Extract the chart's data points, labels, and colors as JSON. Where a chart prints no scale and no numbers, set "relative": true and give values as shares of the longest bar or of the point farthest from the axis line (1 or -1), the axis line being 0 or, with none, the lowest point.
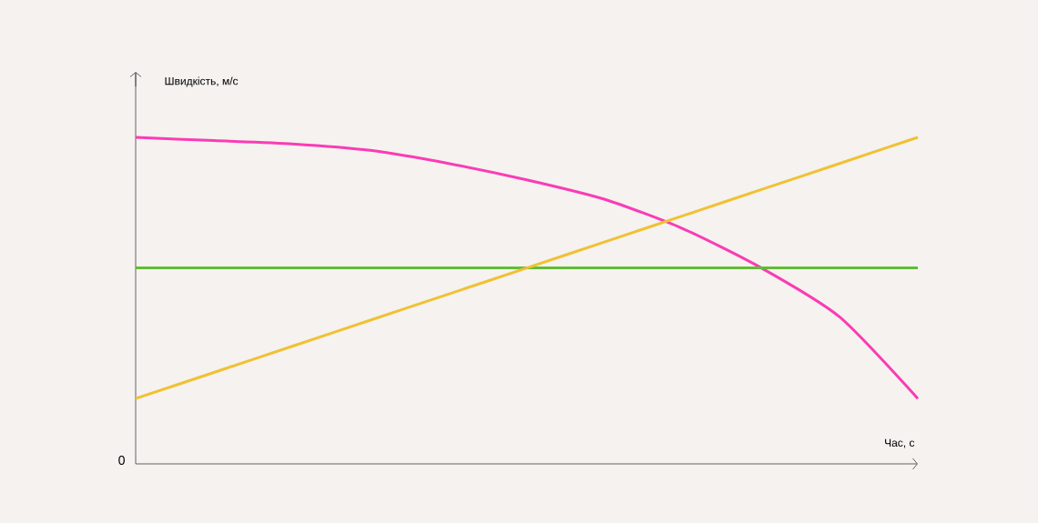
{
  "chart_data": {
    "type": "line",
    "relative": true,
    "xlabel": "Час, с",
    "ylabel": "Швидкість, м/с",
    "categories": [
      null,
      null,
      null,
      null,
      null,
      null,
      null,
      null,
      null,
      null,
      null
    ],
    "series": [
      {
        "color": "#fa3cb4",
        "values": [
          1.0,
          0.99,
          0.98,
          0.96,
          0.92,
          0.87,
          0.81,
          0.72,
          0.6,
          0.45,
          0.2
        ]
      },
      {
        "color": "#62bd35",
        "values": [
          0.6,
          0.6,
          0.6,
          0.6,
          0.6,
          0.6,
          0.6,
          0.6,
          0.6,
          0.6,
          0.6
        ]
      },
      {
        "color": "#f0c132",
        "values": [
          0.2,
          0.28,
          0.36,
          0.44,
          0.52,
          0.6,
          0.68,
          0.76,
          0.84,
          0.92,
          1.0
        ]
      }
    ],
    "annotations": [
      "0"
    ],
    "marker": "none",
    "line_style": "solid"
  }
}
